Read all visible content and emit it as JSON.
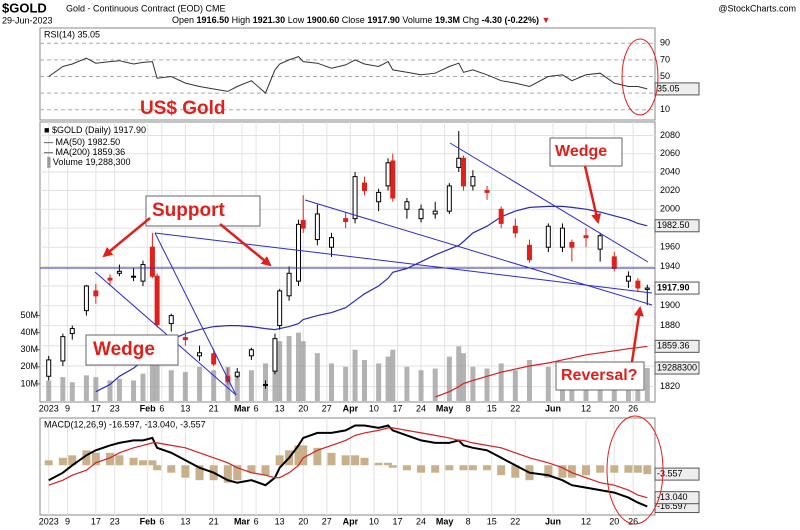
{
  "header": {
    "symbol": "$GOLD",
    "name": "Gold - Continuous Contract (EOD) CME",
    "date": "29-Jun-2023",
    "source": "@StockCharts.com",
    "quote": [
      {
        "label": "Open",
        "value": "1916.50"
      },
      {
        "label": "High",
        "value": "1921.30"
      },
      {
        "label": "Low",
        "value": "1900.60"
      },
      {
        "label": "Close",
        "value": "1917.90"
      },
      {
        "label": "Volume",
        "value": "19.3M"
      },
      {
        "label": "Chg",
        "value": "-4.30 (-0.22%)"
      }
    ]
  },
  "chart_data": [
    {
      "type": "line",
      "title": "RSI(14) 35.05",
      "ylim": [
        0,
        100
      ],
      "yticks": [
        10,
        30,
        50,
        70,
        90
      ],
      "grid": true,
      "series": [
        {
          "name": "RSI(14)",
          "color": "#333333",
          "last_value_label": "35.05",
          "values": [
            50,
            62,
            65,
            72,
            66,
            68,
            69,
            65,
            67,
            68,
            48,
            50,
            42,
            38,
            35,
            32,
            38,
            45,
            30,
            58,
            65,
            70,
            74,
            68,
            66,
            60,
            64,
            70,
            65,
            62,
            68,
            58,
            55,
            52,
            54,
            62,
            66,
            55,
            58,
            52,
            45,
            42,
            38,
            50,
            52,
            45,
            52,
            54,
            42,
            38,
            38,
            35.05
          ]
        }
      ]
    },
    {
      "type": "candlestick",
      "title": "$GOLD (Daily) 1917.90",
      "log_scale": true,
      "grid": true,
      "x": [
        "2023-01-03",
        "2023-01-06",
        "2023-01-10",
        "2023-01-13",
        "2023-01-17",
        "2023-01-20",
        "2023-01-24",
        "2023-01-27",
        "2023-01-31",
        "2023-02-02",
        "2023-02-03",
        "2023-02-08",
        "2023-02-13",
        "2023-02-16",
        "2023-02-21",
        "2023-02-24",
        "2023-02-28",
        "2023-03-03",
        "2023-03-08",
        "2023-03-10",
        "2023-03-13",
        "2023-03-15",
        "2023-03-17",
        "2023-03-20",
        "2023-03-23",
        "2023-03-28",
        "2023-03-31",
        "2023-04-04",
        "2023-04-06",
        "2023-04-11",
        "2023-04-13",
        "2023-04-14",
        "2023-04-19",
        "2023-04-24",
        "2023-04-27",
        "2023-05-02",
        "2023-05-04",
        "2023-05-05",
        "2023-05-09",
        "2023-05-12",
        "2023-05-17",
        "2023-05-22",
        "2023-05-25",
        "2023-05-31",
        "2023-06-05",
        "2023-06-07",
        "2023-06-12",
        "2023-06-15",
        "2023-06-20",
        "2023-06-23",
        "2023-06-27",
        "2023-06-29"
      ],
      "open": [
        1830,
        1845,
        1872,
        1895,
        1915,
        1928,
        1933,
        1930,
        1925,
        1960,
        1930,
        1882,
        1868,
        1850,
        1852,
        1830,
        1830,
        1850,
        1822,
        1835,
        1880,
        1910,
        1925,
        1988,
        1968,
        1960,
        1990,
        1990,
        2028,
        2008,
        2025,
        2052,
        2000,
        1990,
        1995,
        1998,
        2045,
        2055,
        2025,
        2020,
        2000,
        1982,
        1962,
        1960,
        1960,
        1965,
        1972,
        1958,
        1950,
        1925,
        1925,
        1916.5
      ],
      "high": [
        1850,
        1872,
        1880,
        1921,
        1922,
        1932,
        1942,
        1938,
        1946,
        1975,
        1933,
        1892,
        1875,
        1860,
        1857,
        1838,
        1838,
        1858,
        1826,
        1872,
        1917,
        1940,
        1989,
        2015,
        2005,
        1975,
        1997,
        2040,
        2035,
        2022,
        2055,
        2060,
        2012,
        2005,
        2008,
        2028,
        2085,
        2058,
        2042,
        2025,
        2003,
        1990,
        1968,
        1985,
        1985,
        1968,
        1980,
        1975,
        1955,
        1935,
        1928,
        1921.3
      ],
      "low": [
        1826,
        1840,
        1866,
        1890,
        1902,
        1920,
        1930,
        1925,
        1920,
        1928,
        1878,
        1874,
        1860,
        1845,
        1840,
        1822,
        1828,
        1846,
        1818,
        1832,
        1876,
        1905,
        1920,
        1975,
        1962,
        1950,
        1980,
        1985,
        2015,
        1998,
        2020,
        2008,
        1990,
        1986,
        1990,
        1995,
        2040,
        2020,
        2020,
        2010,
        1980,
        1970,
        1944,
        1955,
        1955,
        1945,
        1960,
        1945,
        1935,
        1918,
        1914,
        1900.6
      ],
      "close": [
        1846,
        1869,
        1877,
        1920,
        1910,
        1926,
        1935,
        1930,
        1942,
        1930,
        1881,
        1890,
        1866,
        1853,
        1842,
        1825,
        1834,
        1856,
        1822,
        1867,
        1915,
        1933,
        1984,
        1980,
        1995,
        1970,
        1987,
        2035,
        2020,
        2018,
        2050,
        2012,
        2008,
        2000,
        1998,
        2025,
        2055,
        2025,
        2035,
        2018,
        1985,
        1975,
        1947,
        1982,
        1980,
        1960,
        1970,
        1972,
        1938,
        1930,
        1918,
        1917.9
      ],
      "last_value_label": "1917.90",
      "up_color": "#000000",
      "down_color": "#e0201b",
      "xlim": [
        "2023-01-02",
        "2023-06-30"
      ],
      "ylim": [
        1808,
        2095
      ],
      "yticks": [
        1820,
        1840,
        1860,
        1880,
        1900,
        1920,
        1940,
        1960,
        1980,
        2000,
        2020,
        2040,
        2060,
        2080
      ],
      "series": [
        {
          "name": "MA(50)",
          "color": "#2b2bb8",
          "last_value_label": "1982.50",
          "values": [
            null,
            null,
            null,
            null,
            1815,
            1822,
            1830,
            1838,
            1845,
            1852,
            1860,
            1866,
            1872,
            1876,
            1879,
            1880,
            1880,
            1879,
            1877,
            1876,
            1877,
            1879,
            1882,
            1886,
            1890,
            1893,
            1898,
            1905,
            1912,
            1920,
            1928,
            1934,
            1938,
            1945,
            1952,
            1958,
            1962,
            1966,
            1975,
            1982,
            1992,
            1998,
            2002,
            2003,
            2003,
            2002,
            2000,
            1997,
            1993,
            1989,
            1985,
            1982.5
          ]
        },
        {
          "name": "MA(200)",
          "color": "#d42020",
          "last_value_label": "1859.36",
          "values": [
            null,
            null,
            null,
            null,
            null,
            null,
            null,
            null,
            null,
            null,
            null,
            null,
            null,
            null,
            null,
            null,
            null,
            null,
            null,
            null,
            null,
            null,
            null,
            null,
            null,
            null,
            null,
            null,
            null,
            null,
            null,
            null,
            null,
            null,
            1810,
            1815,
            1820,
            1823,
            1826,
            1830,
            1834,
            1837,
            1840,
            1843,
            1846,
            1848,
            1851,
            1853,
            1855,
            1857,
            1858,
            1859.36
          ]
        }
      ],
      "volume": {
        "name": "Volume",
        "legend_label": "19,288,300",
        "last_value_label": "19288300",
        "color": "#9a9a9a",
        "ylim": [
          0,
          55
        ],
        "yticks": [
          {
            "value": 10,
            "label": "10M"
          },
          {
            "value": 20,
            "label": "20M"
          },
          {
            "value": 30,
            "label": "30M"
          },
          {
            "value": 40,
            "label": "40M"
          },
          {
            "value": 50,
            "label": "50M"
          }
        ],
        "values": [
          12,
          14,
          11,
          15,
          14,
          12,
          13,
          12,
          16,
          24,
          28,
          18,
          17,
          20,
          18,
          20,
          16,
          18,
          22,
          28,
          35,
          38,
          40,
          35,
          28,
          22,
          20,
          30,
          24,
          22,
          26,
          30,
          20,
          18,
          19,
          26,
          32,
          28,
          20,
          19,
          22,
          18,
          24,
          20,
          18,
          20,
          16,
          18,
          17,
          19,
          17,
          19.2883
        ]
      },
      "xticks": [
        {
          "value": "2023-01-03",
          "label": "2023"
        },
        {
          "value": "2023-01-09",
          "label": "9"
        },
        {
          "value": "2023-01-17",
          "label": "17"
        },
        {
          "value": "2023-01-23",
          "label": "23"
        },
        {
          "value": "2023-02-01",
          "label": "Feb"
        },
        {
          "value": "2023-02-06",
          "label": "6"
        },
        {
          "value": "2023-02-13",
          "label": "13"
        },
        {
          "value": "2023-02-21",
          "label": "21"
        },
        {
          "value": "2023-03-01",
          "label": "Mar"
        },
        {
          "value": "2023-03-06",
          "label": "6"
        },
        {
          "value": "2023-03-13",
          "label": "13"
        },
        {
          "value": "2023-03-20",
          "label": "20"
        },
        {
          "value": "2023-03-27",
          "label": "27"
        },
        {
          "value": "2023-04-03",
          "label": "Apr"
        },
        {
          "value": "2023-04-10",
          "label": "10"
        },
        {
          "value": "2023-04-17",
          "label": "17"
        },
        {
          "value": "2023-04-24",
          "label": "24"
        },
        {
          "value": "2023-05-01",
          "label": "May"
        },
        {
          "value": "2023-05-08",
          "label": "8"
        },
        {
          "value": "2023-05-15",
          "label": "15"
        },
        {
          "value": "2023-05-22",
          "label": "22"
        },
        {
          "value": "2023-06-01",
          "label": "Jun"
        },
        {
          "value": "2023-06-12",
          "label": "12"
        },
        {
          "value": "2023-06-20",
          "label": "20"
        },
        {
          "value": "2023-06-26",
          "label": "26"
        }
      ],
      "annotations": [
        "US$ Gold",
        "Support",
        "Wedge",
        "Wedge",
        "Reversal?"
      ]
    },
    {
      "type": "macd",
      "title": "MACD(12,26,9) -16.597, -13.040, -3.557",
      "ylim": [
        -20,
        19
      ],
      "series": [
        {
          "name": "MACD",
          "kind": "line",
          "color": "#000000",
          "last_value_label": "-16.597",
          "values": [
            -6,
            -3,
            0,
            4,
            6,
            8,
            9,
            10,
            10,
            11,
            7,
            5,
            2,
            -1,
            -3,
            -6,
            -7,
            -6,
            -8,
            -5,
            -1,
            3,
            8,
            11,
            13,
            13,
            14,
            16,
            16,
            15,
            16,
            14,
            12,
            10,
            9,
            9,
            10,
            8,
            7,
            6,
            3,
            0,
            -3,
            -4,
            -6,
            -8,
            -9,
            -10,
            -11,
            -13,
            -15,
            -16.597
          ]
        },
        {
          "name": "Signal",
          "kind": "line",
          "color": "#d42020",
          "last_value_label": "-13.040",
          "values": [
            -8,
            -6,
            -4,
            -2,
            1,
            3,
            5,
            7,
            8,
            9,
            9,
            8,
            7,
            5,
            3,
            1,
            -1,
            -3,
            -4,
            -5,
            -5,
            -3,
            0,
            3,
            6,
            8,
            10,
            12,
            13,
            14,
            15,
            15,
            14,
            13,
            12,
            11,
            10,
            10,
            9,
            8,
            7,
            5,
            3,
            1,
            -1,
            -3,
            -5,
            -7,
            -8,
            -10,
            -12,
            -13.04
          ]
        },
        {
          "name": "Histogram",
          "kind": "bar",
          "color": "#c7b08a",
          "last_value_label": "-3.557",
          "values": [
            2,
            3,
            4,
            6,
            5,
            5,
            4,
            3,
            2,
            2,
            -2,
            -3,
            -5,
            -6,
            -6,
            -7,
            -6,
            -3,
            -4,
            0,
            4,
            6,
            8,
            8,
            7,
            5,
            4,
            4,
            3,
            1,
            1,
            -1,
            -2,
            -3,
            -3,
            -2,
            0,
            -2,
            -2,
            -2,
            -4,
            -5,
            -6,
            -5,
            -5,
            -5,
            -4,
            -3,
            -3,
            -3,
            -3,
            -3.557
          ]
        }
      ],
      "xticks": [
        {
          "value": "2023-01-03",
          "label": "2023"
        },
        {
          "value": "2023-01-09",
          "label": "9"
        },
        {
          "value": "2023-01-17",
          "label": "17"
        },
        {
          "value": "2023-01-23",
          "label": "23"
        },
        {
          "value": "2023-02-01",
          "label": "Feb"
        },
        {
          "value": "2023-02-06",
          "label": "6"
        },
        {
          "value": "2023-02-13",
          "label": "13"
        },
        {
          "value": "2023-02-21",
          "label": "21"
        },
        {
          "value": "2023-03-01",
          "label": "Mar"
        },
        {
          "value": "2023-03-06",
          "label": "6"
        },
        {
          "value": "2023-03-13",
          "label": "13"
        },
        {
          "value": "2023-03-20",
          "label": "20"
        },
        {
          "value": "2023-03-27",
          "label": "27"
        },
        {
          "value": "2023-04-03",
          "label": "Apr"
        },
        {
          "value": "2023-04-10",
          "label": "10"
        },
        {
          "value": "2023-04-17",
          "label": "17"
        },
        {
          "value": "2023-04-24",
          "label": "24"
        },
        {
          "value": "2023-05-01",
          "label": "May"
        },
        {
          "value": "2023-05-08",
          "label": "8"
        },
        {
          "value": "2023-05-15",
          "label": "15"
        },
        {
          "value": "2023-05-22",
          "label": "22"
        },
        {
          "value": "2023-06-01",
          "label": "Jun"
        },
        {
          "value": "2023-06-12",
          "label": "12"
        },
        {
          "value": "2023-06-20",
          "label": "20"
        },
        {
          "value": "2023-06-26",
          "label": "26"
        }
      ]
    }
  ]
}
